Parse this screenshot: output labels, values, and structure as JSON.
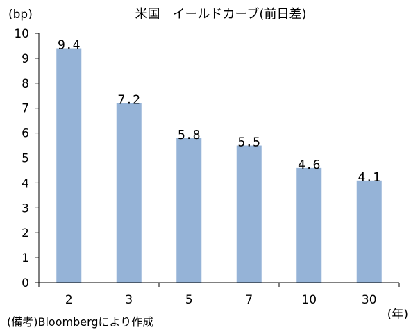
{
  "chart_data": {
    "type": "bar",
    "title": "米国　イールドカーブ(前日差)",
    "ylabel": "(bp)",
    "xlabel": "(年)",
    "categories": [
      "2",
      "3",
      "5",
      "7",
      "10",
      "30"
    ],
    "values": [
      9.4,
      7.2,
      5.8,
      5.5,
      4.6,
      4.1
    ],
    "data_labels": [
      "9.4",
      "7.2",
      "5.8",
      "5.5",
      "4.6",
      "4.1"
    ],
    "ylim": [
      0,
      10
    ],
    "yticks": [
      "0",
      "1",
      "2",
      "3",
      "4",
      "5",
      "6",
      "7",
      "8",
      "9",
      "10"
    ],
    "grid": false,
    "bar_color": "#95B3D7"
  },
  "note": "(備考)Bloombergにより作成"
}
